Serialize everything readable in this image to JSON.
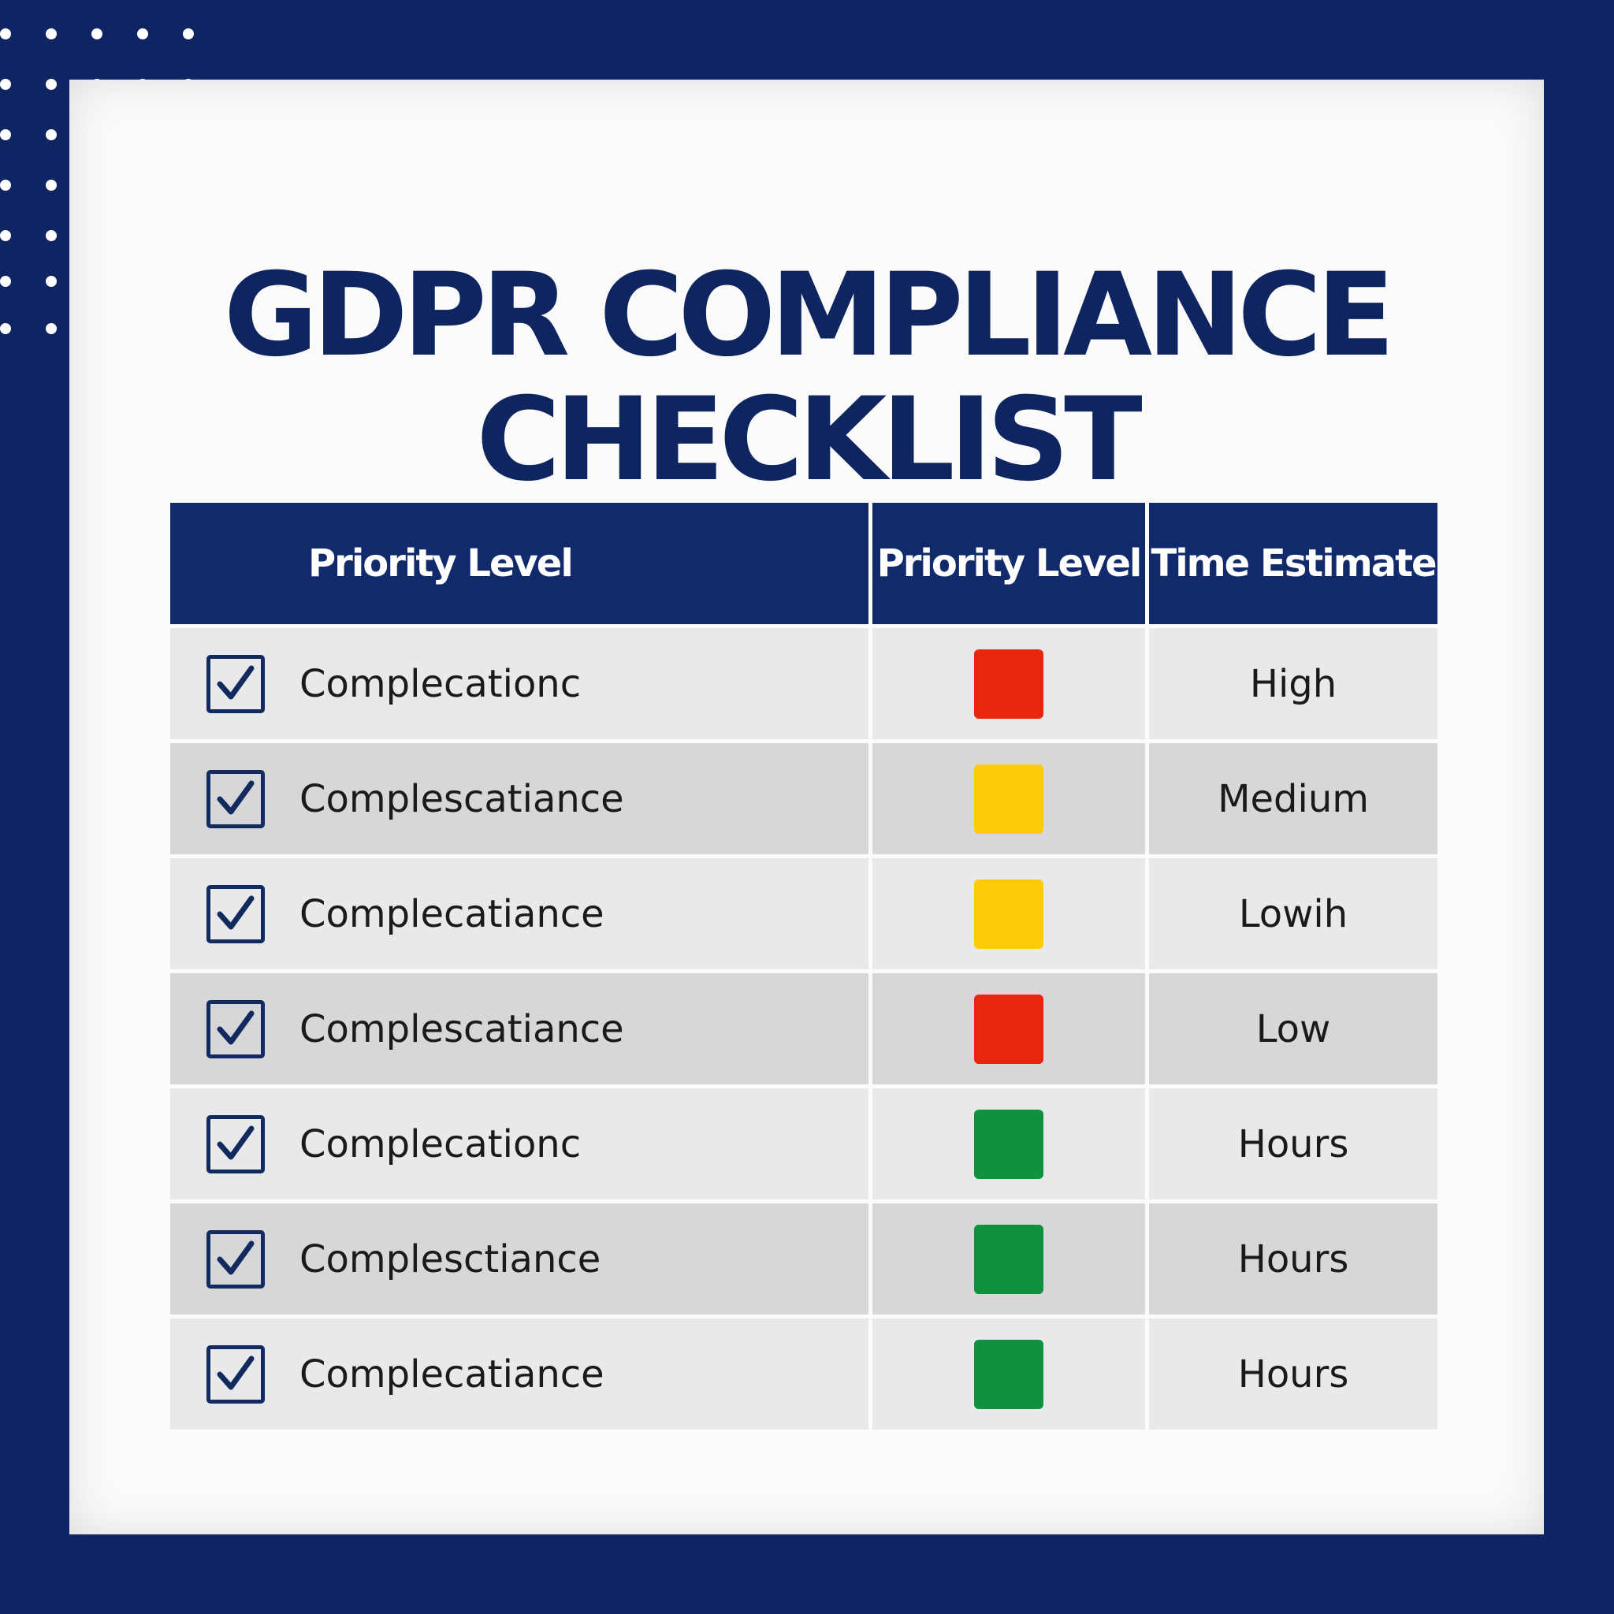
{
  "title": {
    "line1": "GDPR COMPLIANCE",
    "line2": "CHECKLIST"
  },
  "table": {
    "headers": {
      "item": "Priority Level",
      "priority": "Priority Level",
      "time": "Time Estimate"
    },
    "rows": [
      {
        "checked": true,
        "label": "Complecationc",
        "priority_color": "#e8260c",
        "time": "High"
      },
      {
        "checked": true,
        "label": "Complescatiance",
        "priority_color": "#fccb07",
        "time": "Medium"
      },
      {
        "checked": true,
        "label": "Complecatiance",
        "priority_color": "#fccb07",
        "time": "Lowih"
      },
      {
        "checked": true,
        "label": "Complescatiance",
        "priority_color": "#e8260c",
        "time": "Low"
      },
      {
        "checked": true,
        "label": "Complecationc",
        "priority_color": "#0f913e",
        "time": "Hours"
      },
      {
        "checked": true,
        "label": "Complesctiance",
        "priority_color": "#0f913e",
        "time": "Hours"
      },
      {
        "checked": true,
        "label": "Complecatiance",
        "priority_color": "#0f913e",
        "time": "Hours"
      }
    ]
  },
  "colors": {
    "background": "#0e2463",
    "header": "#102a6c",
    "title": "#0f2560"
  }
}
